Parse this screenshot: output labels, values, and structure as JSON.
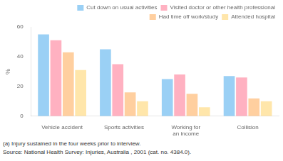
{
  "chart_data": {
    "type": "bar",
    "categories": [
      "Vehicle accident",
      "Sports activities",
      "Working for\nan income",
      "Collision"
    ],
    "series": [
      {
        "name": "Cut down on usual activities",
        "values": [
          55,
          45,
          25,
          27
        ]
      },
      {
        "name": "Visited doctor or other health professional",
        "values": [
          51,
          35,
          28,
          26
        ]
      },
      {
        "name": "Had time off work/study",
        "values": [
          43,
          16,
          15,
          12
        ]
      },
      {
        "name": "Attended hospital",
        "values": [
          31,
          10,
          6,
          10
        ]
      }
    ],
    "ylabel": "%",
    "ylim": [
      0,
      60
    ],
    "yticks": [
      0,
      20,
      40,
      60
    ],
    "grid": false,
    "legend": "upper right",
    "annotations": [
      "(a) Injury sustained in the four weeks prior to interview.",
      "Source: National Health Survey: Injuries, Australia , 2001 (cat. no. 4384.0)."
    ]
  }
}
